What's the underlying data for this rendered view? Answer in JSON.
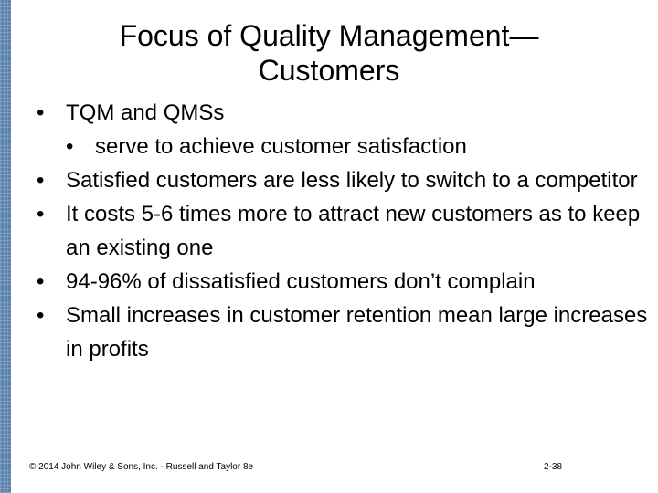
{
  "slide": {
    "title_line1": "Focus of Quality Management—",
    "title_line2": "Customers",
    "bullet_glyph": "•",
    "bullets": [
      "TQM and QMSs",
      "serve to achieve customer satisfaction",
      "Satisfied customers are less likely to switch to a competitor",
      "It costs 5-6 times more to attract new customers as to keep an existing one",
      "94-96% of dissatisfied customers don’t complain",
      "Small increases in customer retention mean large increases in profits"
    ],
    "footer": {
      "copyright": "© 2014 John Wiley & Sons, Inc. - Russell and Taylor 8e",
      "page_number": "2-38"
    }
  },
  "colors": {
    "strip": "#5b83ad",
    "text": "#000000",
    "background": "#ffffff"
  }
}
